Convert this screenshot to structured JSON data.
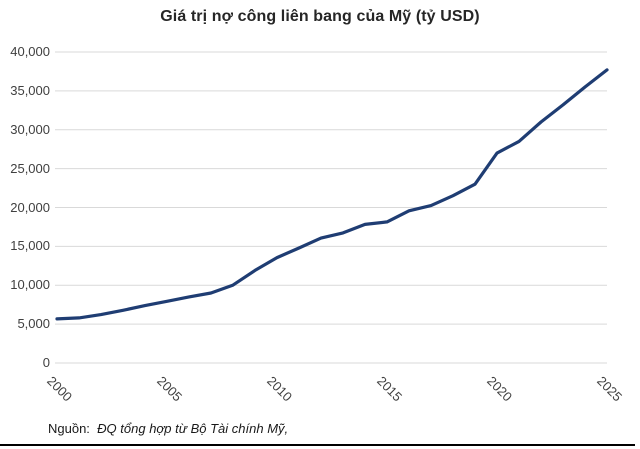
{
  "title": "Giá trị nợ công liên bang của Mỹ (tỷ USD)",
  "source": {
    "prefix": "Nguồn:",
    "text": "ĐQ tổng hợp từ Bộ Tài chính Mỹ,"
  },
  "colors": {
    "line": "#1f3d73",
    "grid": "#d9d9d9",
    "title_text": "#262626",
    "axis_text": "#404040",
    "rule": "#000000"
  },
  "chart_data": {
    "type": "line",
    "title": "Giá trị nợ công liên bang của Mỹ (tỷ USD)",
    "xlabel": "",
    "ylabel": "",
    "xlim": [
      2000,
      2025
    ],
    "ylim": [
      0,
      40000
    ],
    "grid": "horizontal",
    "legend": "none",
    "x": [
      2000,
      2001,
      2002,
      2003,
      2004,
      2005,
      2006,
      2007,
      2008,
      2009,
      2010,
      2011,
      2012,
      2013,
      2014,
      2015,
      2016,
      2017,
      2018,
      2019,
      2020,
      2021,
      2022,
      2023,
      2024,
      2025
    ],
    "values": [
      5674,
      5807,
      6228,
      6783,
      7379,
      7933,
      8507,
      9008,
      10025,
      11910,
      13562,
      14790,
      16066,
      16738,
      17824,
      18151,
      19573,
      20245,
      21516,
      23000,
      27000,
      28500,
      31000,
      33200,
      35500,
      37700
    ],
    "x_ticks": [
      {
        "value": 2000,
        "label": "2000"
      },
      {
        "value": 2005,
        "label": "2005"
      },
      {
        "value": 2010,
        "label": "2010"
      },
      {
        "value": 2015,
        "label": "2015"
      },
      {
        "value": 2020,
        "label": "2020"
      },
      {
        "value": 2025,
        "label": "2025"
      }
    ],
    "y_ticks": [
      {
        "value": 0,
        "label": "0"
      },
      {
        "value": 5000,
        "label": "5,000"
      },
      {
        "value": 10000,
        "label": "10,000"
      },
      {
        "value": 15000,
        "label": "15,000"
      },
      {
        "value": 20000,
        "label": "20,000"
      },
      {
        "value": 25000,
        "label": "25,000"
      },
      {
        "value": 30000,
        "label": "30,000"
      },
      {
        "value": 35000,
        "label": "35,000"
      },
      {
        "value": 40000,
        "label": "40,000"
      }
    ]
  }
}
